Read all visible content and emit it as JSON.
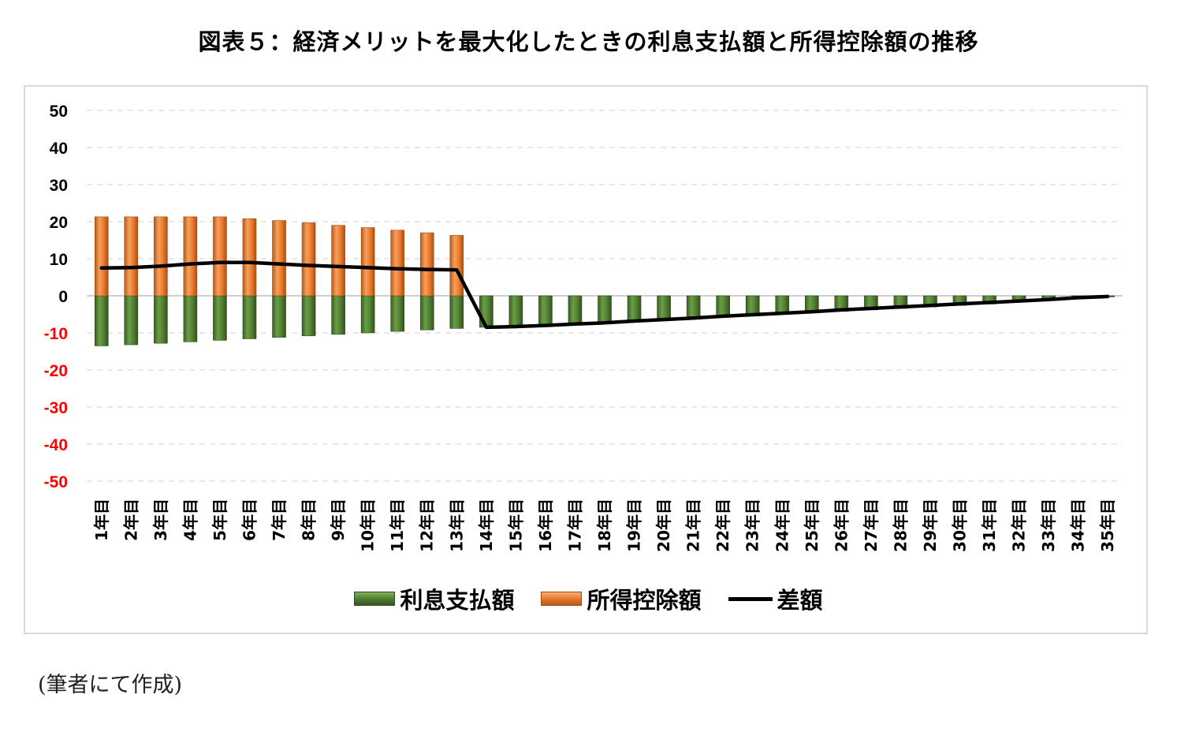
{
  "title": "図表５：経済メリットを最大化したときの利息支払額と所得控除額の推移",
  "source_note": "(筆者にて作成)",
  "legend": {
    "interest": "利息支払額",
    "deduction": "所得控除額",
    "difference": "差額"
  },
  "colors": {
    "interest": "#548235",
    "deduction": "#ed7d31",
    "difference": "#000000",
    "positive_tick": "#000000",
    "negative_tick": "#ff0000",
    "grid": "#d9d9d9"
  },
  "chart_data": {
    "type": "bar",
    "title": "図表５：経済メリットを最大化したときの利息支払額と所得控除額の推移",
    "xlabel": "",
    "ylabel": "",
    "ylim": [
      -50,
      50
    ],
    "yticks": [
      50,
      40,
      30,
      20,
      10,
      0,
      -10,
      -20,
      -30,
      -40,
      -50
    ],
    "grid": true,
    "legend_position": "bottom",
    "categories": [
      "1年目",
      "2年目",
      "3年目",
      "4年目",
      "5年目",
      "6年目",
      "7年目",
      "8年目",
      "9年目",
      "10年目",
      "11年目",
      "12年目",
      "13年目",
      "14年目",
      "15年目",
      "16年目",
      "17年目",
      "18年目",
      "19年目",
      "20年目",
      "21年目",
      "22年目",
      "23年目",
      "24年目",
      "25年目",
      "26年目",
      "27年目",
      "28年目",
      "29年目",
      "30年目",
      "31年目",
      "32年目",
      "33年目",
      "34年目",
      "35年目"
    ],
    "series": [
      {
        "name": "利息支払額",
        "kind": "bar",
        "values": [
          -13.5,
          -13.2,
          -12.8,
          -12.4,
          -12.0,
          -11.6,
          -11.2,
          -10.8,
          -10.4,
          -10.0,
          -9.6,
          -9.2,
          -8.8,
          -8.5,
          -8.2,
          -7.9,
          -7.6,
          -7.3,
          -7.0,
          -6.6,
          -6.2,
          -5.8,
          -5.4,
          -5.0,
          -4.6,
          -4.2,
          -3.8,
          -3.4,
          -3.0,
          -2.6,
          -2.2,
          -1.7,
          -1.2,
          -0.7,
          -0.3
        ]
      },
      {
        "name": "所得控除額",
        "kind": "bar",
        "values": [
          21.3,
          21.3,
          21.3,
          21.3,
          21.3,
          20.8,
          20.3,
          19.7,
          19.0,
          18.4,
          17.7,
          17.0,
          16.3,
          0,
          0,
          0,
          0,
          0,
          0,
          0,
          0,
          0,
          0,
          0,
          0,
          0,
          0,
          0,
          0,
          0,
          0,
          0,
          0,
          0,
          0
        ]
      },
      {
        "name": "差額",
        "kind": "line",
        "values": [
          7.5,
          7.6,
          8.0,
          8.6,
          9.0,
          9.0,
          8.6,
          8.2,
          7.9,
          7.6,
          7.3,
          7.1,
          7.0,
          -8.5,
          -8.3,
          -8.0,
          -7.6,
          -7.3,
          -6.8,
          -6.4,
          -6.0,
          -5.5,
          -5.1,
          -4.7,
          -4.3,
          -3.8,
          -3.4,
          -3.0,
          -2.6,
          -2.2,
          -1.8,
          -1.4,
          -1.0,
          -0.5,
          -0.2
        ]
      }
    ]
  }
}
